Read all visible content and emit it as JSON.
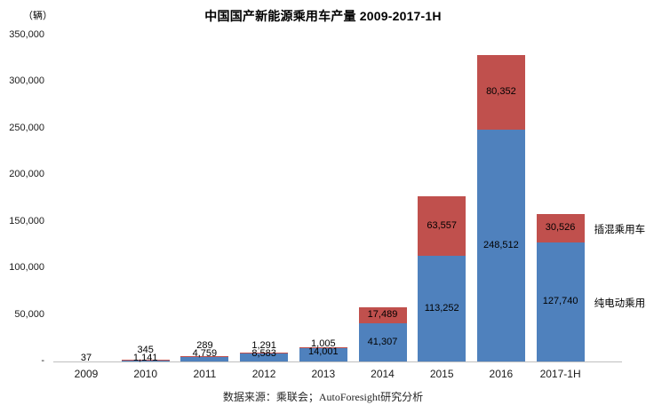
{
  "title": "中国国产新能源乘用车产量 2009-2017-1H",
  "unit_label": "（辆）",
  "source_note": "数据来源：乘联会；AutoForesight研究分析",
  "colors": {
    "bev_blue": "#4F81BD",
    "phev_red": "#C0504D",
    "axis_line": "#BFBFBF"
  },
  "chart_data": {
    "type": "bar",
    "stacked": true,
    "title": "中国国产新能源乘用车产量 2009-2017-1H",
    "ylabel": "（辆）",
    "ylim": [
      0,
      350000
    ],
    "ytick_step": 50000,
    "ytick_labels": [
      "-",
      "50,000",
      "100,000",
      "150,000",
      "200,000",
      "250,000",
      "300,000",
      "350,000"
    ],
    "grid": false,
    "legend_position": "right-of-last-bar",
    "categories": [
      "2009",
      "2010",
      "2011",
      "2012",
      "2013",
      "2014",
      "2015",
      "2016",
      "2017-1H"
    ],
    "series": [
      {
        "name": "纯电动乘用车",
        "color": "#4F81BD",
        "values": [
          37,
          1141,
          4759,
          8583,
          14001,
          41307,
          113252,
          248512,
          127740
        ],
        "labels": [
          "37",
          "1,141",
          "4,759",
          "8,583",
          "14,001",
          "41,307",
          "113,252",
          "248,512",
          "127,740"
        ]
      },
      {
        "name": "插混乘用车",
        "color": "#C0504D",
        "values": [
          0,
          345,
          289,
          1291,
          1005,
          17489,
          63557,
          80352,
          30526
        ],
        "labels": [
          "",
          "345",
          "289",
          "1,291",
          "1,005",
          "17,489",
          "63,557",
          "80,352",
          "30,526"
        ]
      }
    ]
  }
}
